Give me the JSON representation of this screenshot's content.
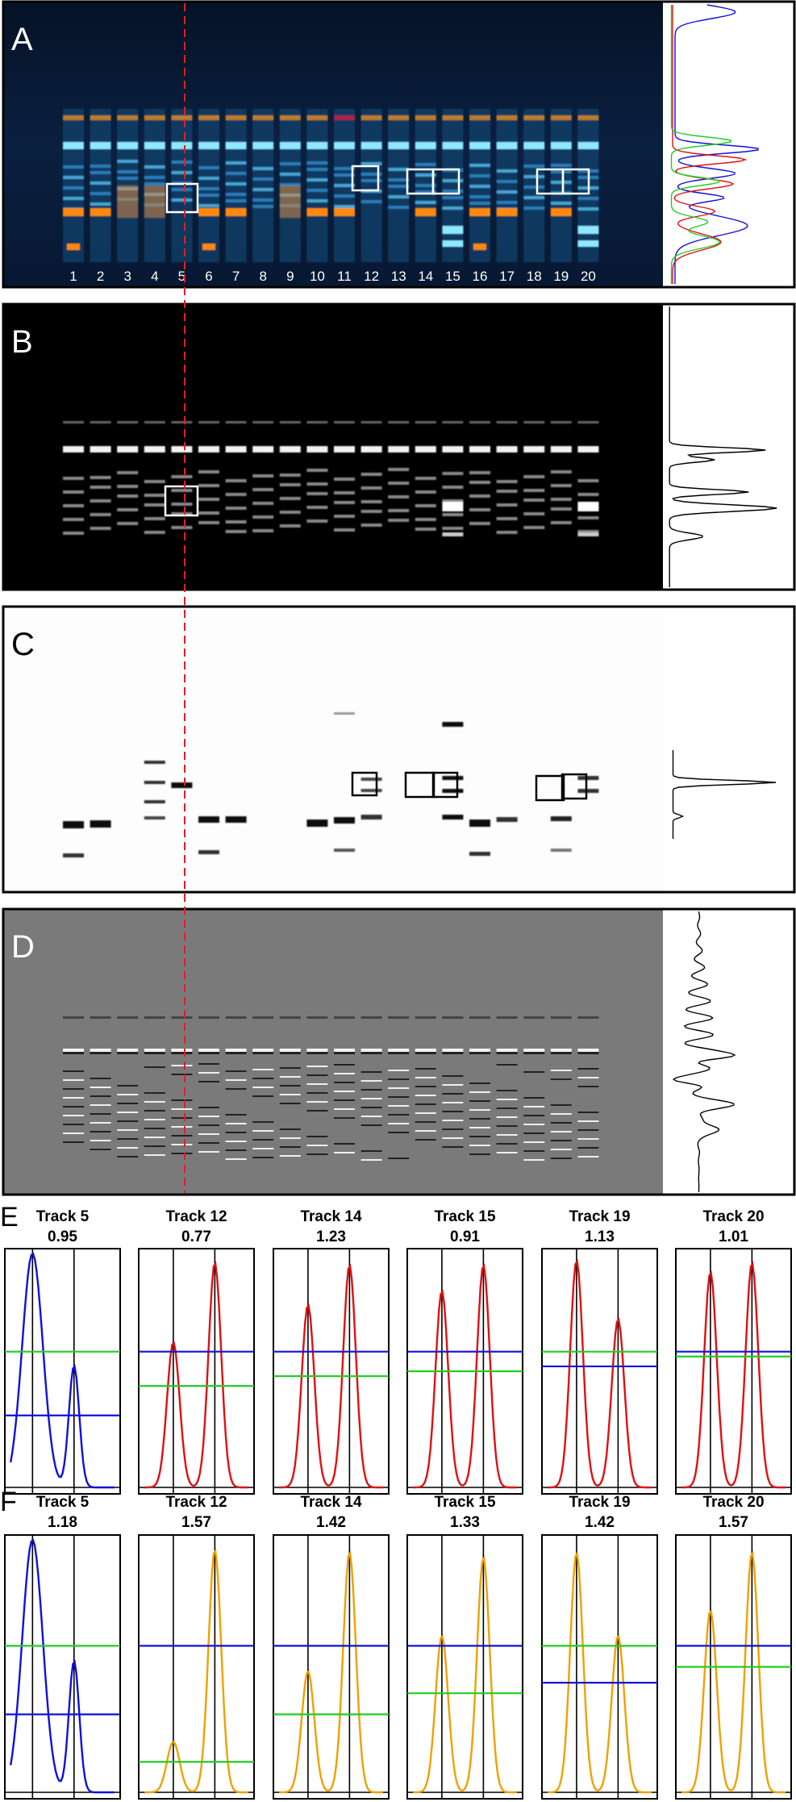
{
  "panels": {
    "A": {
      "letter": "A",
      "lanes": [
        "1",
        "2",
        "3",
        "4",
        "5",
        "6",
        "7",
        "8",
        "9",
        "10",
        "11",
        "12",
        "13",
        "14",
        "15",
        "16",
        "17",
        "18",
        "19",
        "20"
      ]
    },
    "B": {
      "letter": "B"
    },
    "C": {
      "letter": "C"
    },
    "D": {
      "letter": "D"
    },
    "E": {
      "letter": "E"
    },
    "F": {
      "letter": "F"
    }
  },
  "colors": {
    "blue": "#1010dd",
    "red": "#e01010",
    "green": "#22cc22",
    "orange": "#f0a000",
    "dashed": "#e02020"
  },
  "tracks": {
    "E": [
      {
        "title": "Track 5",
        "value": "0.95",
        "curve": "blue"
      },
      {
        "title": "Track 12",
        "value": "0.77",
        "curve": "red"
      },
      {
        "title": "Track 14",
        "value": "1.23",
        "curve": "red"
      },
      {
        "title": "Track 15",
        "value": "0.91",
        "curve": "red"
      },
      {
        "title": "Track 19",
        "value": "1.13",
        "curve": "red"
      },
      {
        "title": "Track 20",
        "value": "1.01",
        "curve": "red"
      }
    ],
    "F": [
      {
        "title": "Track 5",
        "value": "1.18",
        "curve": "blue"
      },
      {
        "title": "Track 12",
        "value": "1.57",
        "curve": "orange"
      },
      {
        "title": "Track 14",
        "value": "1.42",
        "curve": "orange"
      },
      {
        "title": "Track 15",
        "value": "1.33",
        "curve": "orange"
      },
      {
        "title": "Track 19",
        "value": "1.42",
        "curve": "orange"
      },
      {
        "title": "Track 20",
        "value": "1.57",
        "curve": "orange"
      }
    ]
  }
}
